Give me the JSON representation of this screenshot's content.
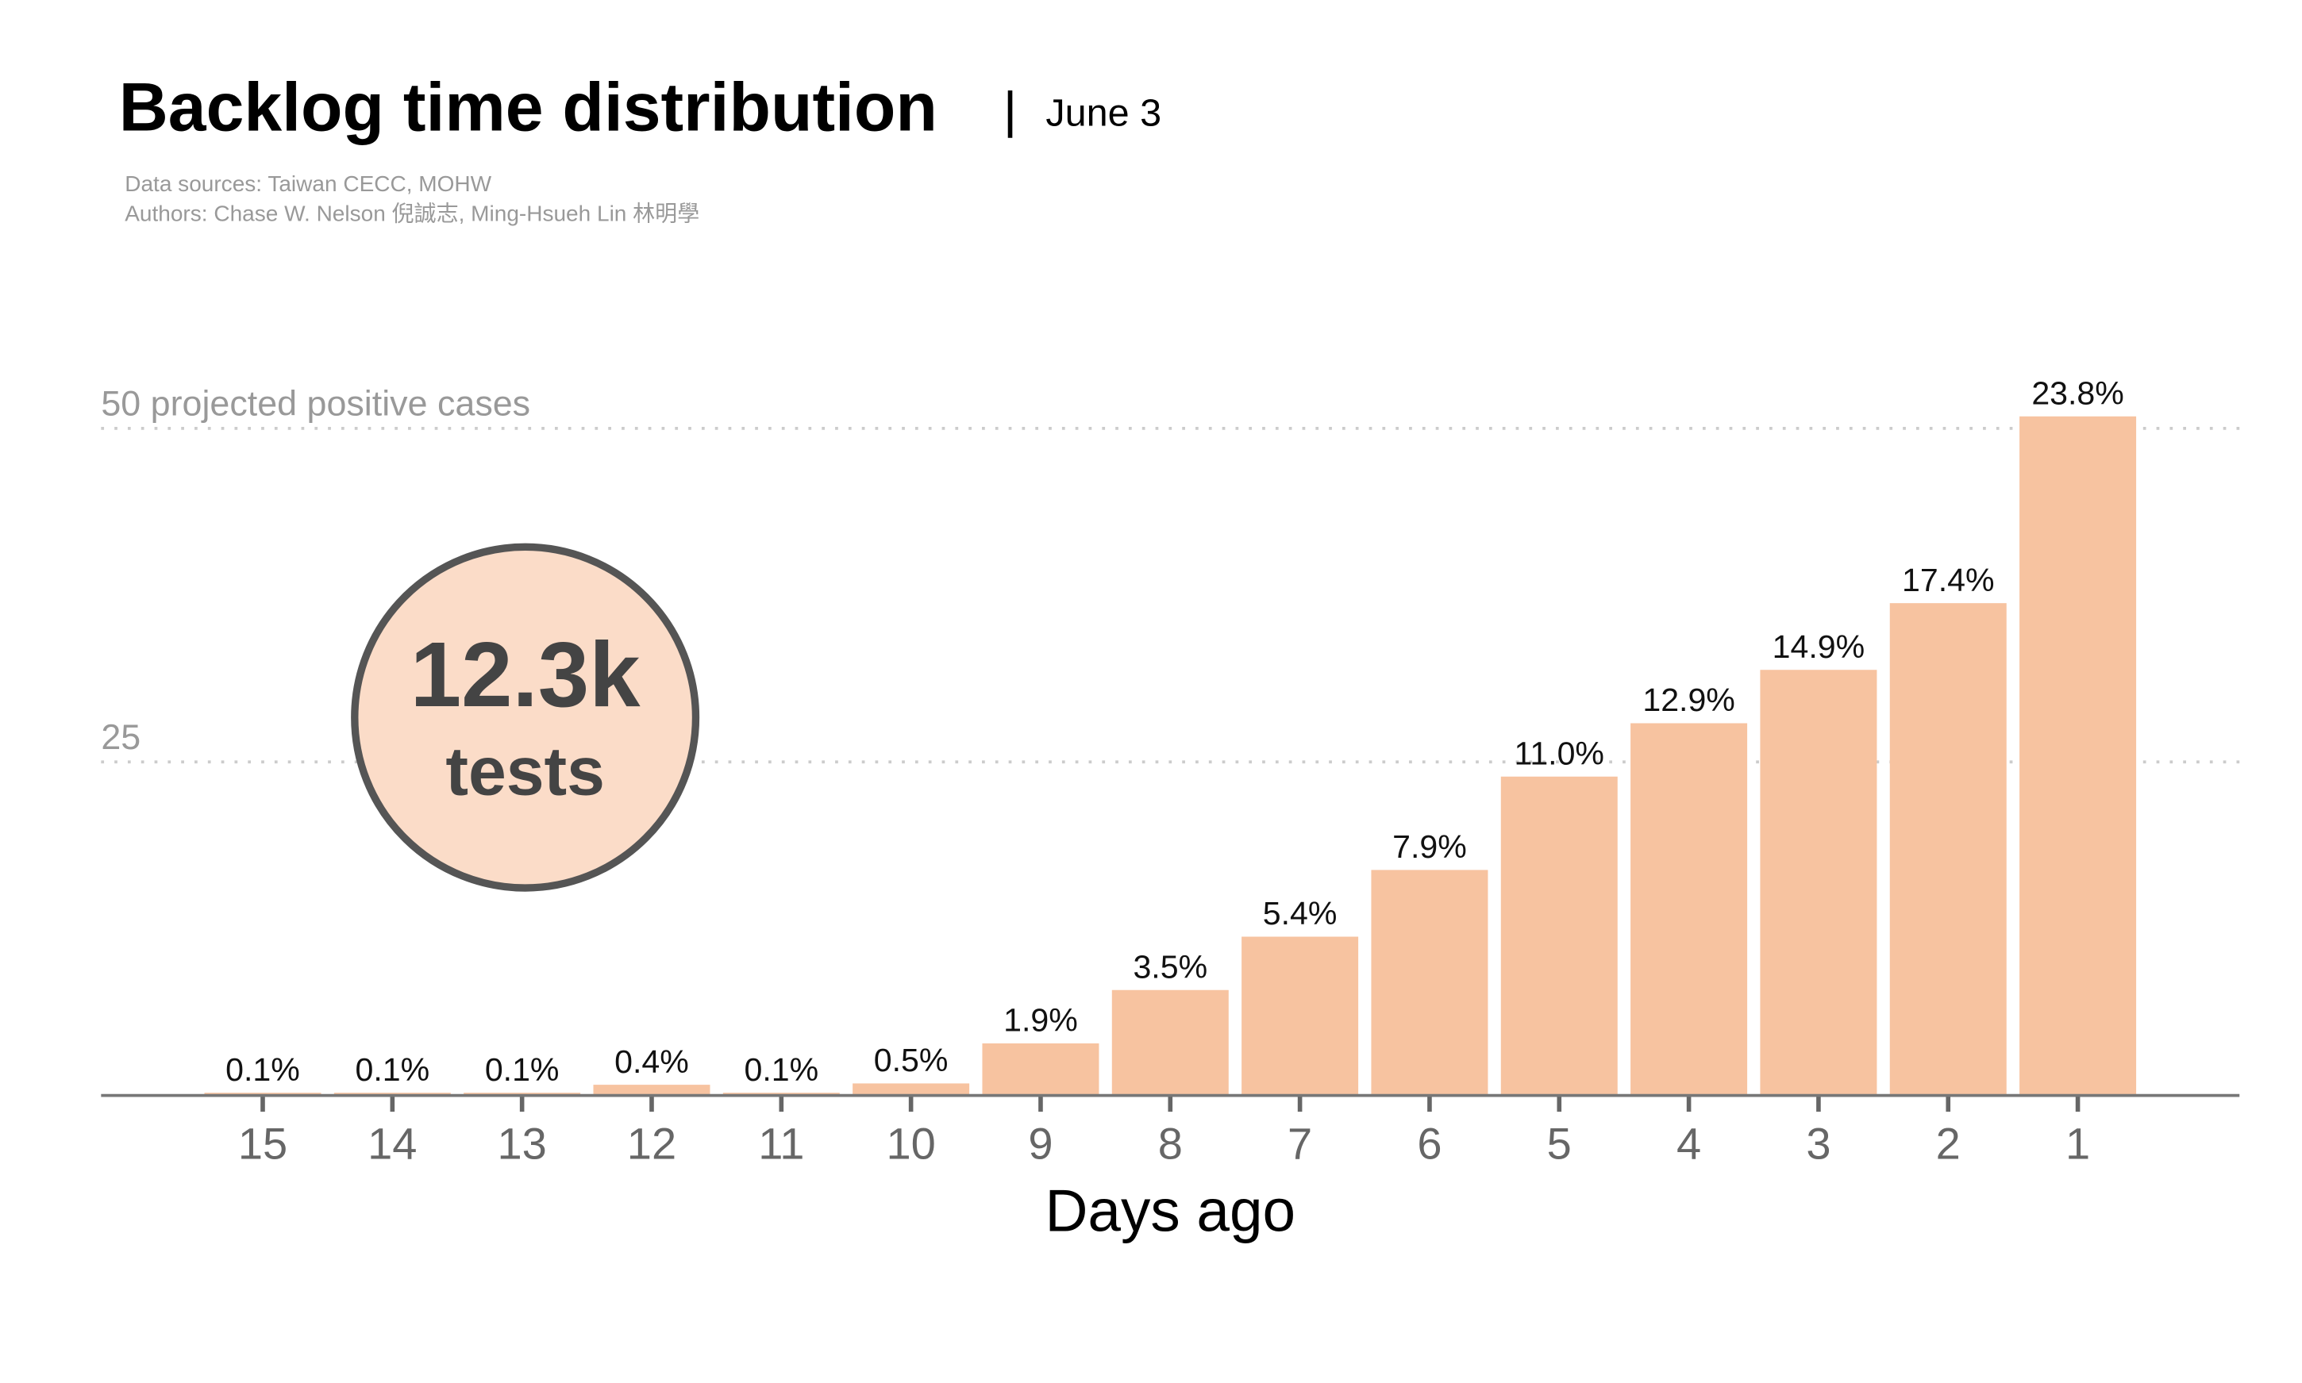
{
  "chart_data": {
    "type": "bar",
    "title": "Backlog time distribution",
    "subtitle": "June 3",
    "sources": [
      "Data sources: Taiwan CECC, MOHW",
      "Authors: Chase W. Nelson 倪誠志, Ming-Hsueh Lin 林明學"
    ],
    "annotation": {
      "value_text": "12.3k",
      "unit_text": "tests"
    },
    "x_label": "Days ago",
    "categories": [
      "15",
      "14",
      "13",
      "12",
      "11",
      "10",
      "9",
      "8",
      "7",
      "6",
      "5",
      "4",
      "3",
      "2",
      "1"
    ],
    "values": [
      0.2,
      0.2,
      0.2,
      0.8,
      0.2,
      0.9,
      3.9,
      7.9,
      11.9,
      16.9,
      23.9,
      27.9,
      31.9,
      36.9,
      50.9
    ],
    "value_labels": [
      "0.1%",
      "0.1%",
      "0.1%",
      "0.4%",
      "0.1%",
      "0.5%",
      "1.9%",
      "3.5%",
      "5.4%",
      "7.9%",
      "11.0%",
      "12.9%",
      "14.9%",
      "17.4%",
      "23.8%"
    ],
    "color": "#f7c3a0",
    "ylim": [
      0,
      55
    ],
    "yticks": [
      25,
      {
        "value": 50,
        "label": "50 projected positive cases"
      }
    ],
    "grid": true
  }
}
